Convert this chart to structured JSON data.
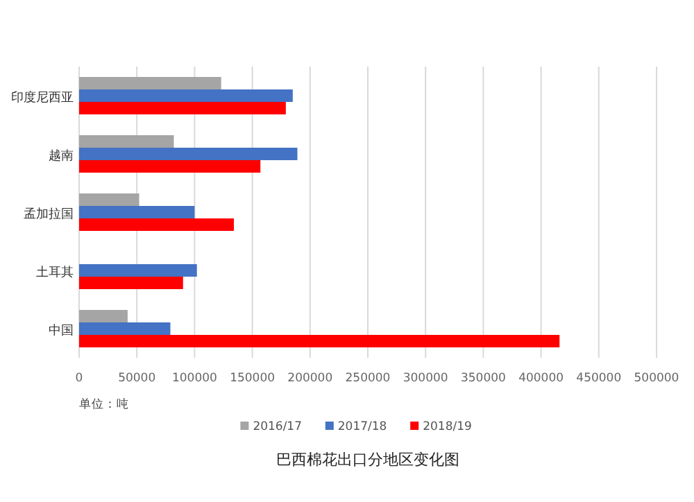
{
  "chart_data": {
    "type": "bar",
    "orientation": "horizontal",
    "title": "巴西棉花出口分地区变化图",
    "categories": [
      "印度尼西亚",
      "越南",
      "孟加拉国",
      "土耳其",
      "中国"
    ],
    "series": [
      {
        "name": "2016/17",
        "color": "#a5a5a5",
        "values": [
          123000,
          82000,
          52000,
          null,
          42000
        ]
      },
      {
        "name": "2017/18",
        "color": "#4472c4",
        "values": [
          185000,
          189000,
          100000,
          102000,
          79000
        ]
      },
      {
        "name": "2018/19",
        "color": "#ff0000",
        "values": [
          179000,
          157000,
          134000,
          90000,
          416000
        ]
      }
    ],
    "xlim": [
      0,
      500000
    ],
    "xticks": [
      0,
      50000,
      100000,
      150000,
      200000,
      250000,
      300000,
      350000,
      400000,
      450000,
      500000
    ],
    "grid": "x",
    "legend": "bottom",
    "annotations": [
      "单位：吨"
    ]
  }
}
